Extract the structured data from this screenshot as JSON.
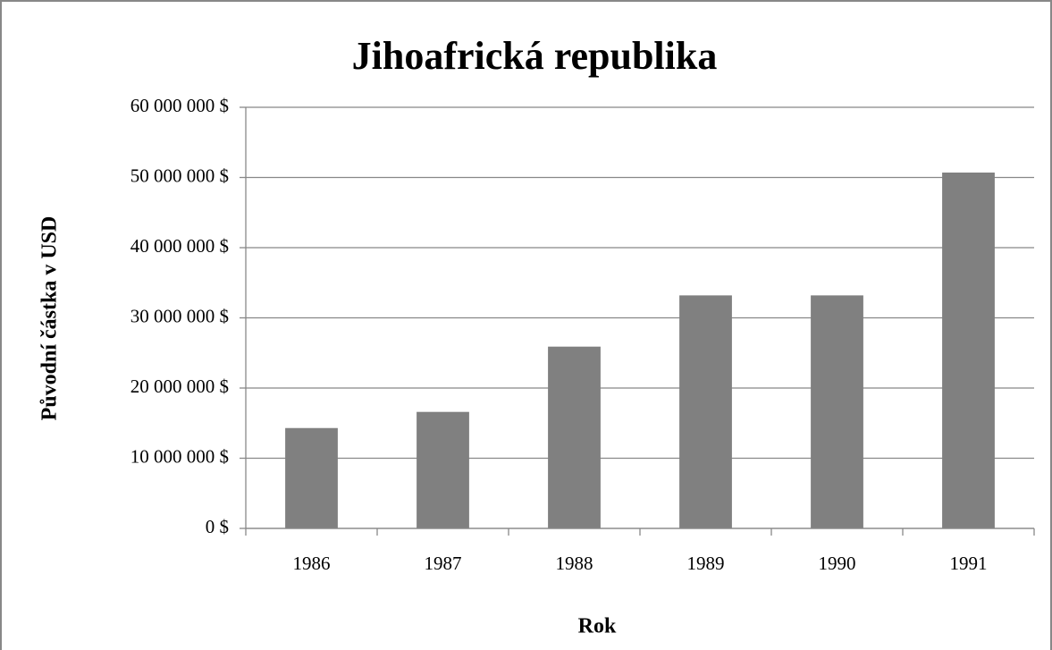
{
  "chart_data": {
    "type": "bar",
    "title": "Jihoafrická republika",
    "x_label": "Rok",
    "y_label": "Původní částka v USD",
    "categories": [
      "1986",
      "1987",
      "1988",
      "1989",
      "1990",
      "1991"
    ],
    "values": [
      14300000,
      16600000,
      25900000,
      33200000,
      33200000,
      50700000
    ],
    "color": "#808080",
    "ylim": [
      0,
      60000000
    ],
    "yticks": [
      {
        "value": 0,
        "label": "0 $"
      },
      {
        "value": 10000000,
        "label": "10 000 000 $"
      },
      {
        "value": 20000000,
        "label": "20 000 000 $"
      },
      {
        "value": 30000000,
        "label": "30 000 000 $"
      },
      {
        "value": 40000000,
        "label": "40 000 000 $"
      },
      {
        "value": 50000000,
        "label": "50 000 000 $"
      },
      {
        "value": 60000000,
        "label": "60 000 000 $"
      }
    ],
    "grid": true
  }
}
